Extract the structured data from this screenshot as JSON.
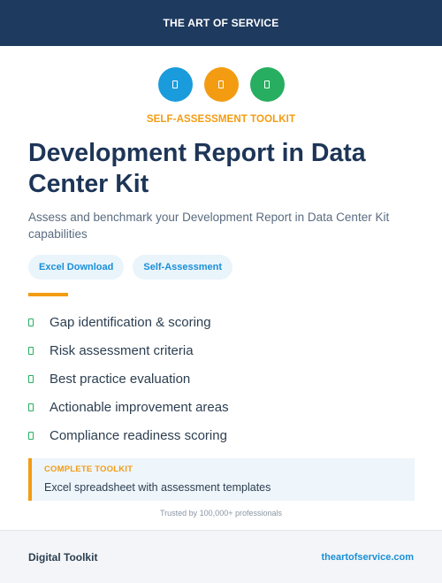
{
  "header": {
    "title": "THE ART OF SERVICE"
  },
  "icons": [
    {
      "name": "document-icon",
      "color": "#1a9bdc"
    },
    {
      "name": "document-icon",
      "color": "#f39c12"
    },
    {
      "name": "document-icon",
      "color": "#27ae60"
    }
  ],
  "eyebrow": "SELF-ASSESSMENT TOOLKIT",
  "title": "Development Report in Data Center Kit",
  "subtitle": "Assess and benchmark your Development Report in Data Center Kit capabilities",
  "badges": [
    "Excel Download",
    "Self-Assessment"
  ],
  "features": [
    "Gap identification & scoring",
    "Risk assessment criteria",
    "Best practice evaluation",
    "Actionable improvement areas",
    "Compliance readiness scoring"
  ],
  "callout": {
    "eyebrow": "COMPLETE TOOLKIT",
    "text": "Excel spreadsheet with assessment templates"
  },
  "trusted": "Trusted by 100,000+ professionals",
  "footer": {
    "left": "Digital Toolkit",
    "right": "theartofservice.com"
  },
  "colors": {
    "header_bg": "#1e3a5f",
    "accent_orange": "#f39c12",
    "accent_blue": "#1a8fd6",
    "accent_green": "#27ae60"
  }
}
